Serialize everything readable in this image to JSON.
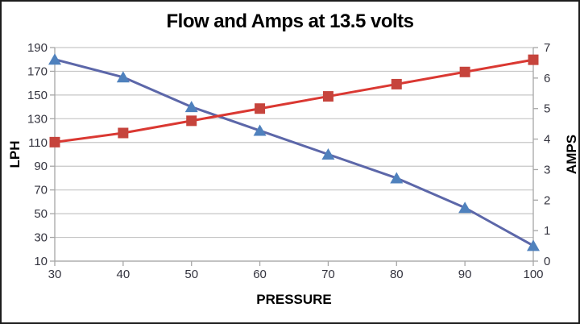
{
  "chart_data": {
    "type": "line",
    "title": "Flow and Amps at 13.5 volts",
    "x": [
      30,
      40,
      50,
      60,
      70,
      80,
      90,
      100
    ],
    "x_axis": {
      "label": "PRESSURE",
      "min": 30,
      "max": 100,
      "step": 10
    },
    "left_axis": {
      "label": "LPH",
      "min": 10,
      "max": 190,
      "step": 20
    },
    "right_axis": {
      "label": "AMPS",
      "min": 0,
      "max": 7,
      "step": 1
    },
    "grid": "horizontal",
    "legend": "none",
    "series": [
      {
        "name": "LPH",
        "axis": "left",
        "marker": "triangle",
        "line_color": "#5C67A9",
        "marker_color": "#4F81BD",
        "values": [
          180,
          165,
          140,
          120,
          100,
          80,
          55,
          23
        ]
      },
      {
        "name": "AMPS",
        "axis": "right",
        "marker": "square",
        "line_color": "#DA3832",
        "marker_color": "#C6443C",
        "values": [
          3.9,
          4.2,
          4.6,
          5.0,
          5.4,
          5.8,
          6.2,
          6.6
        ]
      }
    ],
    "styles": {
      "gridline_color": "#C6C6C6",
      "axis_line_color": "#A6A6A6",
      "tick_label_color": "#34343F",
      "axis_title_color": "#000000",
      "background": "#FFFFFF"
    }
  }
}
